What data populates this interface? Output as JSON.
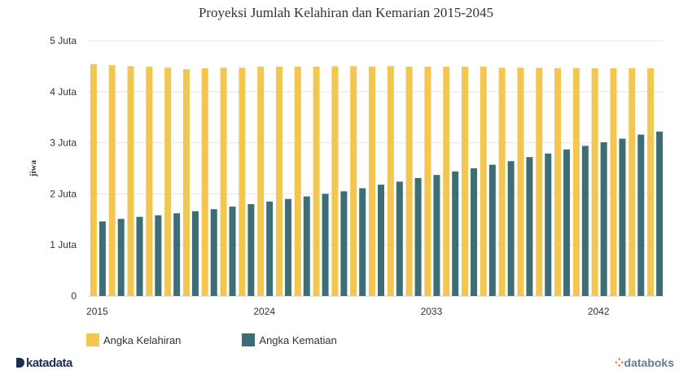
{
  "title": "Proyeksi Jumlah Kelahiran dan Kemarian 2015-2045",
  "brand_left": "katadata",
  "brand_right": "databoks",
  "chart_data": {
    "type": "bar",
    "title": "Proyeksi Jumlah Kelahiran dan Kemarian 2015-2045",
    "xlabel": "",
    "ylabel": "jiwa",
    "ylim": [
      0,
      5000000
    ],
    "yticks": [
      0,
      1000000,
      2000000,
      3000000,
      4000000,
      5000000
    ],
    "ytick_labels": [
      "0",
      "1 Juta",
      "2 Juta",
      "3 Juta",
      "4 Juta",
      "5 Juta"
    ],
    "xtick_labels": [
      "2015",
      "2024",
      "2033",
      "2042"
    ],
    "grid": true,
    "legend_position": "bottom-left",
    "categories": [
      "2015",
      "2016",
      "2017",
      "2018",
      "2019",
      "2020",
      "2021",
      "2022",
      "2023",
      "2024",
      "2025",
      "2026",
      "2027",
      "2028",
      "2029",
      "2030",
      "2031",
      "2032",
      "2033",
      "2034",
      "2035",
      "2036",
      "2037",
      "2038",
      "2039",
      "2040",
      "2041",
      "2042",
      "2043",
      "2044",
      "2045"
    ],
    "series": [
      {
        "name": "Angka Kelahiran",
        "color": "#f2c64f",
        "values": [
          4540000,
          4520000,
          4500000,
          4490000,
          4470000,
          4440000,
          4460000,
          4470000,
          4470000,
          4490000,
          4490000,
          4490000,
          4490000,
          4500000,
          4500000,
          4490000,
          4500000,
          4490000,
          4490000,
          4490000,
          4490000,
          4490000,
          4470000,
          4470000,
          4470000,
          4460000,
          4460000,
          4460000,
          4460000,
          4460000,
          4460000
        ]
      },
      {
        "name": "Angka Kematian",
        "color": "#3d6e75",
        "values": [
          1460000,
          1510000,
          1550000,
          1580000,
          1620000,
          1660000,
          1700000,
          1750000,
          1800000,
          1850000,
          1900000,
          1950000,
          2000000,
          2050000,
          2110000,
          2180000,
          2240000,
          2310000,
          2370000,
          2440000,
          2500000,
          2570000,
          2640000,
          2720000,
          2790000,
          2870000,
          2940000,
          3010000,
          3080000,
          3160000,
          3220000
        ]
      }
    ]
  }
}
